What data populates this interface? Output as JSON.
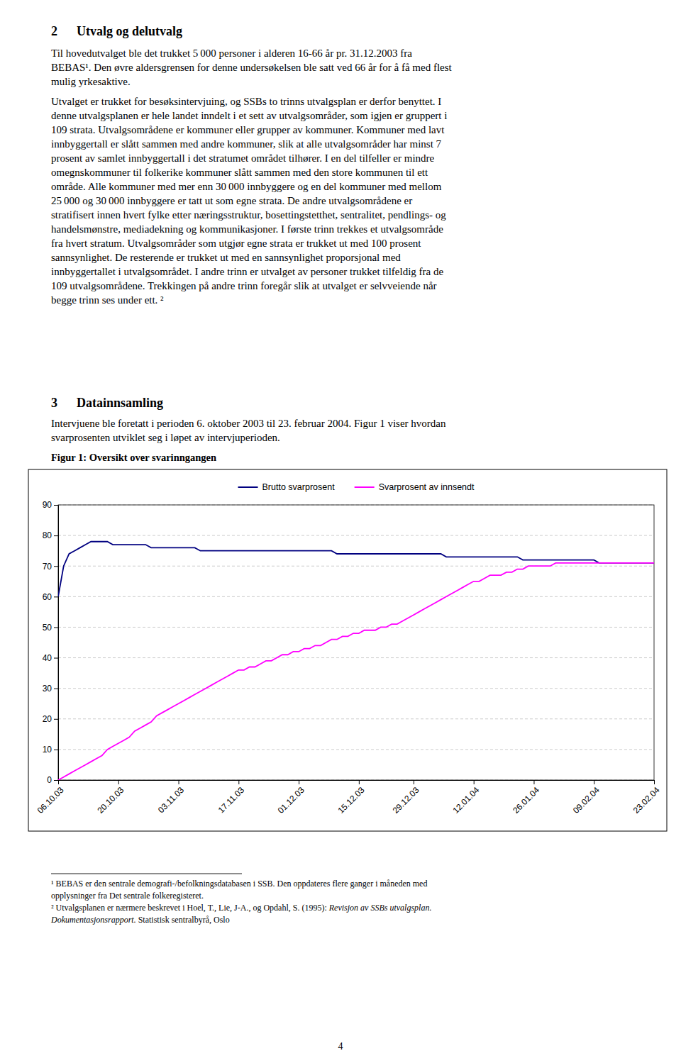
{
  "chart_data": {
    "type": "line",
    "title": "Figur 1: Oversikt over svarinngangen",
    "categories": [
      "06.10.03",
      null,
      null,
      null,
      null,
      null,
      null,
      null,
      null,
      null,
      null,
      "20.10.03",
      null,
      null,
      null,
      null,
      null,
      null,
      null,
      null,
      null,
      null,
      "03.11.03",
      null,
      null,
      null,
      null,
      null,
      null,
      null,
      null,
      null,
      null,
      "17.11.03",
      null,
      null,
      null,
      null,
      null,
      null,
      null,
      null,
      null,
      null,
      "01.12.03",
      null,
      null,
      null,
      null,
      null,
      null,
      null,
      null,
      null,
      null,
      "15.12.03",
      null,
      null,
      null,
      null,
      null,
      null,
      null,
      null,
      null,
      "29.12.03",
      null,
      null,
      null,
      null,
      null,
      null,
      null,
      null,
      null,
      null,
      "12.01.04",
      null,
      null,
      null,
      null,
      null,
      null,
      null,
      null,
      null,
      null,
      "26.01.04",
      null,
      null,
      null,
      null,
      null,
      null,
      null,
      null,
      null,
      null,
      "09.02.04",
      null,
      null,
      null,
      null,
      null,
      null,
      null,
      null,
      null,
      null,
      "23.02.04"
    ],
    "series": [
      {
        "name": "Brutto svarprosent",
        "color": "#000080",
        "values": [
          60,
          70,
          74,
          75,
          76,
          77,
          78,
          78,
          78,
          78,
          77,
          77,
          77,
          77,
          77,
          77,
          77,
          76,
          76,
          76,
          76,
          76,
          76,
          76,
          76,
          76,
          75,
          75,
          75,
          75,
          75,
          75,
          75,
          75,
          75,
          75,
          75,
          75,
          75,
          75,
          75,
          75,
          75,
          75,
          75,
          75,
          75,
          75,
          75,
          75,
          75,
          74,
          74,
          74,
          74,
          74,
          74,
          74,
          74,
          74,
          74,
          74,
          74,
          74,
          74,
          74,
          74,
          74,
          74,
          74,
          74,
          73,
          73,
          73,
          73,
          73,
          73,
          73,
          73,
          73,
          73,
          73,
          73,
          73,
          73,
          72,
          72,
          72,
          72,
          72,
          72,
          72,
          72,
          72,
          72,
          72,
          72,
          72,
          72,
          71,
          71,
          71,
          71,
          71,
          71,
          71,
          71,
          71,
          71,
          71
        ]
      },
      {
        "name": "Svarprosent av innsendt",
        "color": "#FF00FF",
        "values": [
          0,
          1,
          2,
          3,
          4,
          5,
          6,
          7,
          8,
          10,
          11,
          12,
          13,
          14,
          16,
          17,
          18,
          19,
          21,
          22,
          23,
          24,
          25,
          26,
          27,
          28,
          29,
          30,
          31,
          32,
          33,
          34,
          35,
          36,
          36,
          37,
          37,
          38,
          39,
          39,
          40,
          41,
          41,
          42,
          42,
          43,
          43,
          44,
          44,
          45,
          46,
          46,
          47,
          47,
          48,
          48,
          49,
          49,
          49,
          50,
          50,
          51,
          51,
          52,
          53,
          54,
          55,
          56,
          57,
          58,
          59,
          60,
          61,
          62,
          63,
          64,
          65,
          65,
          66,
          67,
          67,
          67,
          68,
          68,
          69,
          69,
          70,
          70,
          70,
          70,
          70,
          71,
          71,
          71,
          71,
          71,
          71,
          71,
          71,
          71,
          71,
          71,
          71,
          71,
          71,
          71,
          71,
          71,
          71,
          71
        ]
      }
    ],
    "ylim": [
      0,
      90
    ],
    "yticks": [
      0,
      10,
      20,
      30,
      40,
      50,
      60,
      70,
      80,
      90
    ],
    "grid": true,
    "legend": "top"
  },
  "page": {
    "headings": [
      {
        "number": "2",
        "text": "Utvalg og delutvalg"
      },
      {
        "number": "3",
        "text": "Datainnsamling"
      }
    ],
    "paragraphs": [
      [
        "Til hovedutvalget ble det trukket 5 000 personer i alderen 16-66 år pr. 31.12.2003 fra",
        "BEBAS¹. Den øvre aldersgrensen for denne undersøkelsen ble satt ved 66 år for å få med flest",
        "mulig yrkesaktive."
      ],
      [
        "Utvalget er trukket for besøksintervjuing, og SSBs to trinns utvalgsplan er derfor benyttet. I",
        "denne utvalgsplanen er hele landet inndelt i et sett av utvalgsområder, som igjen er gruppert i",
        "109 strata. Utvalgsområdene er kommuner eller grupper av kommuner. Kommuner med lavt",
        "innbyggertall er slått sammen med andre kommuner, slik at alle utvalgsområder har minst 7",
        "prosent av samlet innbyggertall i det stratumet området tilhører. I en del tilfeller er mindre",
        "omegnskommuner til folkerike kommuner slått sammen med den store kommunen til ett",
        "område. Alle kommuner med mer enn 30 000 innbyggere og en del kommuner med mellom",
        "25 000 og 30 000 innbyggere er tatt ut som egne strata. De andre utvalgsområdene er",
        "stratifisert innen hvert fylke etter næringsstruktur, bosettingstetthet, sentralitet, pendlings- og",
        "handelsmønstre, mediadekning og kommunikasjoner. I første trinn trekkes et utvalgsområde",
        "fra hvert stratum. Utvalgsområder som utgjør egne strata er trukket ut med 100 prosent",
        "sannsynlighet. De resterende er trukket ut med en sannsynlighet proporsjonal med",
        "innbyggertallet i utvalgsområdet. I andre trinn er utvalget av personer trukket tilfeldig fra de",
        "109 utvalgsområdene. Trekkingen på andre trinn foregår slik at utvalget er selvveiende når",
        "begge trinn ses under ett. ²"
      ],
      [
        "Intervjuene ble foretatt i perioden 6. oktober 2003 til 23. februar 2004. Figur 1 viser hvordan",
        "svarprosenten utviklet seg i løpet av intervjuperioden."
      ]
    ],
    "footnotes": [
      [
        [
          {
            "text": "¹ BEBAS er den sentrale demografi-/befolkningsdatabasen i SSB. Den oppdateres flere ganger i måneden med"
          }
        ],
        [
          {
            "text": "opplysninger fra Det sentrale folkeregisteret."
          }
        ]
      ],
      [
        [
          {
            "text": "² Utvalgsplanen er nærmere beskrevet i Hoel, T., Lie, J-A., og Opdahl, S. (1995): "
          },
          {
            "text": "Revisjon av SSBs utvalgsplan.",
            "style": "italic"
          }
        ],
        [
          {
            "text": "Dokumentasjonsrapport.",
            "style": "italic"
          },
          {
            "text": " Statistisk sentralbyrå, Oslo"
          }
        ]
      ]
    ],
    "page_number": "4"
  }
}
